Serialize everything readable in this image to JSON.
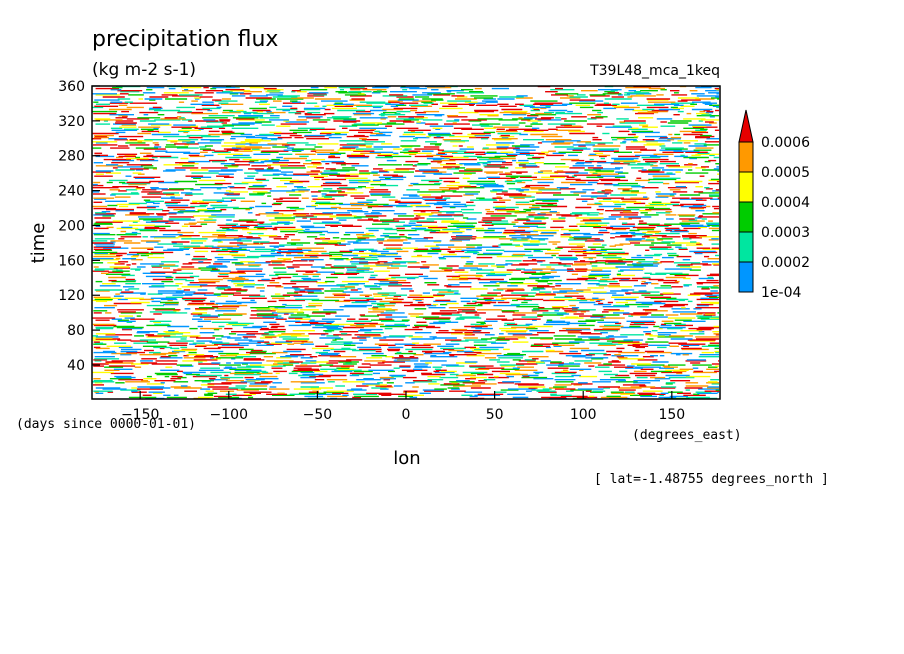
{
  "chart_data": {
    "type": "heatmap",
    "title": "precipitation flux",
    "units": "(kg m-2 s-1)",
    "experiment": "T39L48_mca_1keq",
    "xlabel": "lon",
    "xunits": "(degrees_east)",
    "ylabel": "time",
    "yunits": "(days since 0000-01-01)",
    "footnote": "[ lat=-1.48755 degrees_north ]",
    "xlim": [
      -177.1875,
      177.1875
    ],
    "ylim": [
      1,
      360
    ],
    "xticks": [
      -150,
      -100,
      -50,
      0,
      50,
      100,
      150
    ],
    "xtick_labels": [
      "−150",
      "−100",
      "−50",
      "0",
      "50",
      "100",
      "150"
    ],
    "yticks": [
      40,
      80,
      120,
      160,
      200,
      240,
      280,
      320,
      360
    ],
    "ytick_labels": [
      "40",
      "80",
      "120",
      "160",
      "200",
      "240",
      "280",
      "320",
      "360"
    ],
    "levels": [
      0.0001,
      0.0002,
      0.0003,
      0.0004,
      0.0005,
      0.0006
    ],
    "level_labels": [
      "1e-04",
      "0.0002",
      "0.0003",
      "0.0004",
      "0.0005",
      "0.0006"
    ],
    "colors": [
      "#0096ff",
      "#00e6a0",
      "#00cc00",
      "#ffff00",
      "#ff9900",
      "#e60000"
    ],
    "grid": false,
    "legend": "right"
  }
}
